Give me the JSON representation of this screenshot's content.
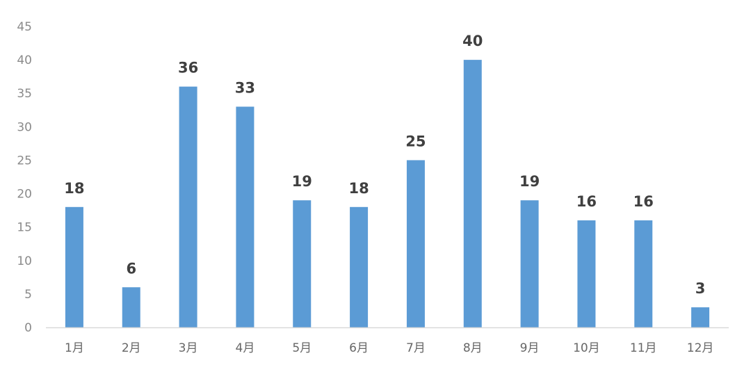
{
  "chart_data": {
    "type": "bar",
    "categories": [
      "1月",
      "2月",
      "3月",
      "4月",
      "5月",
      "6月",
      "7月",
      "8月",
      "9月",
      "10月",
      "11月",
      "12月"
    ],
    "values": [
      18,
      6,
      36,
      33,
      19,
      18,
      25,
      40,
      19,
      16,
      16,
      3
    ],
    "ylim": [
      0,
      45
    ],
    "yticks": [
      0,
      5,
      10,
      15,
      20,
      25,
      30,
      35,
      40,
      45
    ],
    "grid": false,
    "data_labels": true,
    "colors": {
      "bar": "#5B9BD5",
      "axis": "#d9d9d9",
      "label": "#404040"
    }
  }
}
